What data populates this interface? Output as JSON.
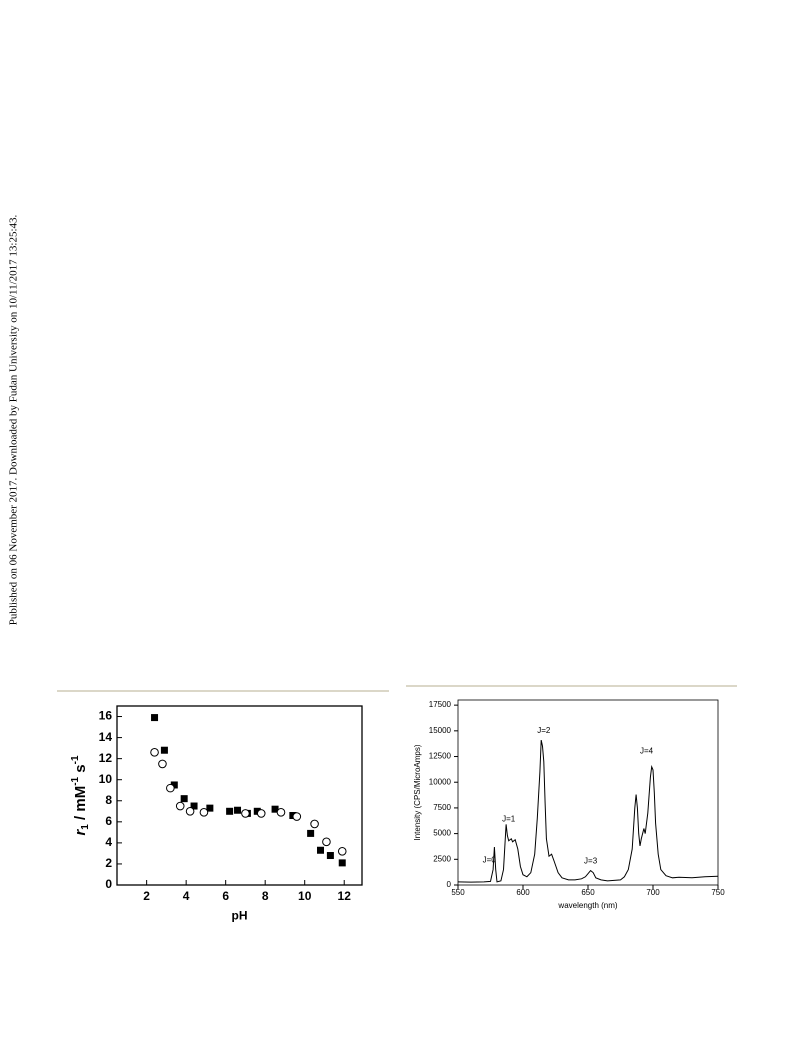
{
  "margin_note": "Published on 06 November 2017. Downloaded by Fudan University on 10/11/2017 13:25:43.",
  "chart_data": [
    {
      "type": "scatter",
      "xlabel": "pH",
      "ylabel": [
        "r",
        "1",
        " / mM",
        "-1",
        " s",
        "-1"
      ],
      "xlim": [
        0.5,
        12.9
      ],
      "xticks": [
        2,
        4,
        6,
        8,
        10,
        12
      ],
      "ylim": [
        0,
        17
      ],
      "yticks": [
        0,
        2,
        4,
        6,
        8,
        10,
        12,
        14,
        16
      ],
      "series": [
        {
          "color": "#000000",
          "marker": "square",
          "x": [
            2.4,
            2.9,
            3.4,
            3.9,
            4.4,
            5.2,
            6.2,
            6.6,
            7.1,
            7.6,
            8.5,
            9.4,
            10.3,
            10.8,
            11.3,
            11.9
          ],
          "values": [
            15.9,
            12.8,
            9.5,
            8.2,
            7.5,
            7.3,
            7.0,
            7.1,
            6.8,
            7.0,
            7.2,
            6.6,
            4.9,
            3.3,
            2.8,
            2.1
          ]
        },
        {
          "color": "#000000",
          "marker": "open-circle",
          "x": [
            2.4,
            2.8,
            3.2,
            3.7,
            4.2,
            4.9,
            7.0,
            7.8,
            8.8,
            9.6,
            10.5,
            11.1,
            11.9
          ],
          "values": [
            12.6,
            11.5,
            9.2,
            7.5,
            7.0,
            6.9,
            6.8,
            6.8,
            6.9,
            6.5,
            5.8,
            4.1,
            3.2
          ]
        }
      ]
    },
    {
      "type": "line",
      "xlabel": "wavelength (nm)",
      "ylabel": "Intensity (CPS/MicroAmps)",
      "xlim": [
        550,
        750
      ],
      "xticks": [
        550,
        600,
        650,
        700,
        750
      ],
      "ylim": [
        0,
        18000
      ],
      "yticks": [
        0,
        2500,
        5000,
        7500,
        10000,
        12500,
        15000,
        17500
      ],
      "color": "#000000",
      "x": [
        550,
        560,
        570,
        575,
        577,
        578,
        579,
        580,
        583,
        585,
        587,
        588,
        589,
        591,
        592,
        594,
        596,
        598,
        600,
        603,
        606,
        609,
        611,
        613,
        614,
        615,
        616,
        617,
        618,
        620,
        622,
        624,
        627,
        630,
        635,
        640,
        645,
        648,
        650,
        652,
        654,
        656,
        660,
        665,
        670,
        675,
        678,
        681,
        684,
        686,
        687,
        688,
        689,
        690,
        691,
        693,
        694,
        696,
        698,
        699,
        700,
        701,
        702,
        704,
        706,
        710,
        715,
        720,
        730,
        740,
        750
      ],
      "values": [
        300,
        280,
        300,
        350,
        1500,
        3700,
        1500,
        300,
        400,
        1500,
        5900,
        4800,
        4300,
        4500,
        4200,
        4400,
        3500,
        1800,
        1000,
        800,
        1200,
        3000,
        6500,
        11000,
        14100,
        13500,
        12000,
        8000,
        4500,
        2800,
        3000,
        2300,
        1200,
        700,
        500,
        500,
        600,
        800,
        1100,
        1400,
        1200,
        700,
        500,
        400,
        450,
        500,
        800,
        1500,
        3500,
        7500,
        8800,
        7500,
        5000,
        3800,
        4500,
        5500,
        5000,
        7000,
        10500,
        11500,
        11200,
        9000,
        6000,
        3000,
        1500,
        900,
        700,
        750,
        700,
        800,
        850
      ],
      "annotations": [
        {
          "text": "J=0",
          "x": 574,
          "y": 2400
        },
        {
          "text": "J=1",
          "x": 589,
          "y": 6400
        },
        {
          "text": "J=2",
          "x": 616,
          "y": 15000
        },
        {
          "text": "J=3",
          "x": 652,
          "y": 2300
        },
        {
          "text": "J=4",
          "x": 695,
          "y": 13000
        }
      ]
    }
  ]
}
